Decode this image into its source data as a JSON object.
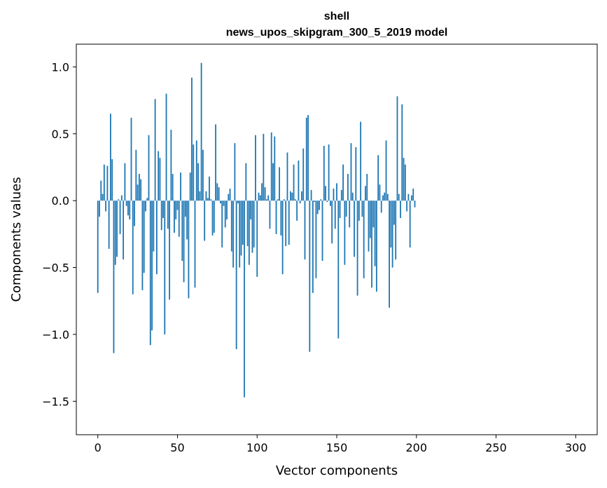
{
  "chart_data": {
    "type": "bar",
    "title": "shell",
    "subtitle": "news_upos_skipgram_300_5_2019 model",
    "xlabel": "Vector components",
    "ylabel": "Components values",
    "xlim": [
      -13.5,
      313.5
    ],
    "ylim": [
      -1.75,
      1.17
    ],
    "xticks": [
      0,
      50,
      100,
      150,
      200,
      250,
      300
    ],
    "yticks": [
      1.0,
      0.5,
      0.0,
      -0.5,
      -1.0,
      -1.5
    ],
    "ytick_labels": [
      "1.0",
      "0.5",
      "0.0",
      "−0.5",
      "−1.0",
      "−1.5"
    ],
    "bar_color": "#1f77b4",
    "values": [
      -0.69,
      -0.12,
      0.15,
      0.05,
      0.27,
      -0.08,
      0.26,
      -0.36,
      0.65,
      0.31,
      -1.14,
      -0.48,
      -0.42,
      0.01,
      -0.25,
      0.04,
      -0.44,
      0.28,
      -0.04,
      -0.11,
      -0.14,
      0.62,
      -0.7,
      -0.19,
      0.38,
      0.12,
      0.2,
      0.16,
      -0.67,
      -0.54,
      -0.08,
      0.02,
      0.49,
      -1.08,
      -0.97,
      -0.38,
      0.76,
      -0.55,
      0.37,
      0.32,
      -0.22,
      -0.13,
      -1.0,
      0.8,
      -0.21,
      -0.74,
      0.53,
      0.2,
      -0.24,
      -0.14,
      -0.07,
      -0.27,
      0.21,
      -0.45,
      -0.61,
      -0.12,
      -0.29,
      -0.73,
      0.21,
      0.92,
      0.42,
      -0.65,
      0.45,
      0.28,
      0.07,
      1.03,
      0.38,
      -0.3,
      0.07,
      0.02,
      0.18,
      0.01,
      -0.26,
      -0.24,
      0.57,
      0.13,
      0.1,
      -0.02,
      -0.35,
      -0.04,
      -0.2,
      -0.14,
      0.05,
      0.09,
      -0.38,
      -0.5,
      0.43,
      -1.11,
      -0.02,
      -0.5,
      -0.41,
      -0.33,
      -1.47,
      0.28,
      -0.34,
      -0.48,
      -0.14,
      -0.39,
      -0.35,
      0.49,
      -0.57,
      0.06,
      0.04,
      0.13,
      0.5,
      0.1,
      0.01,
      0.04,
      -0.21,
      0.51,
      0.28,
      0.48,
      -0.25,
      0.01,
      0.25,
      -0.26,
      -0.55,
      0.01,
      -0.34,
      0.36,
      -0.33,
      0.07,
      0.06,
      0.27,
      0.01,
      -0.15,
      0.3,
      -0.02,
      0.07,
      0.39,
      -0.44,
      0.62,
      0.64,
      -1.13,
      0.08,
      -0.69,
      -0.01,
      -0.58,
      -0.1,
      -0.07,
      0.01,
      -0.45,
      0.41,
      0.11,
      -0.01,
      0.42,
      -0.04,
      -0.32,
      0.09,
      -0.21,
      0.13,
      -1.03,
      -0.13,
      0.08,
      0.27,
      -0.48,
      -0.12,
      0.2,
      -0.2,
      0.43,
      0.06,
      -0.42,
      0.4,
      -0.71,
      -0.15,
      0.59,
      -0.12,
      -0.58,
      0.11,
      0.2,
      -0.38,
      -0.28,
      -0.65,
      -0.2,
      -0.49,
      -0.68,
      0.34,
      0.12,
      -0.09,
      0.04,
      0.06,
      0.45,
      0.05,
      -0.8,
      -0.35,
      -0.5,
      -0.18,
      -0.44,
      0.78,
      0.05,
      -0.13,
      0.72,
      0.32,
      0.27,
      -0.08,
      0.05,
      -0.35,
      0.04,
      0.09,
      -0.05
    ]
  }
}
